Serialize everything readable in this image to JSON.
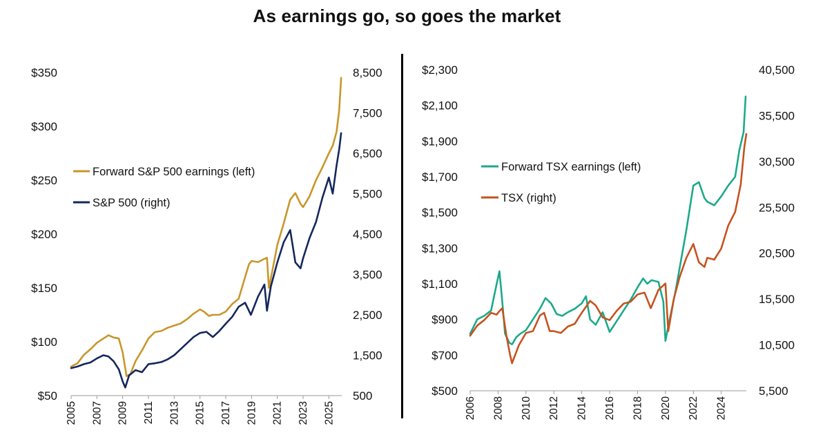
{
  "title": "As earnings go, so goes the market",
  "colors": {
    "sp_earnings": "#C8962A",
    "sp_index": "#14275C",
    "tsx_earnings": "#1BA98A",
    "tsx_index": "#C5521F",
    "divider": "#000000"
  },
  "chart_data": [
    {
      "type": "line",
      "x_ticks": [
        "2005",
        "2007",
        "2009",
        "2011",
        "2013",
        "2015",
        "2017",
        "2019",
        "2021",
        "2023",
        "2025"
      ],
      "xlim": [
        2005,
        2026
      ],
      "y_left_ticks": [
        "$350",
        "$300",
        "$250",
        "$200",
        "$150",
        "$100",
        "$50"
      ],
      "y_left_lim": [
        50,
        350
      ],
      "y_right_ticks": [
        "8,500",
        "7,500",
        "6,500",
        "5,500",
        "4,500",
        "3,500",
        "2,500",
        "1,500",
        "500"
      ],
      "y_right_lim": [
        500,
        8500
      ],
      "legend": {
        "placement": "middle-left"
      },
      "series": [
        {
          "name": "Forward S&P 500 earnings (left)",
          "axis": "left",
          "x": [
            2005.0,
            2005.5,
            2006.0,
            2006.5,
            2007.0,
            2007.5,
            2007.9,
            2008.3,
            2008.7,
            2009.0,
            2009.3,
            2009.6,
            2010.0,
            2010.5,
            2011.0,
            2011.5,
            2012.0,
            2012.5,
            2013.0,
            2013.5,
            2014.0,
            2014.5,
            2015.0,
            2015.3,
            2015.7,
            2016.0,
            2016.5,
            2017.0,
            2017.5,
            2018.0,
            2018.5,
            2018.8,
            2019.0,
            2019.5,
            2020.0,
            2020.2,
            2020.35,
            2020.6,
            2021.0,
            2021.5,
            2022.0,
            2022.4,
            2022.8,
            2023.0,
            2023.5,
            2024.0,
            2024.5,
            2025.0,
            2025.3,
            2025.6,
            2025.8,
            2025.95
          ],
          "values": [
            77,
            80,
            88,
            93,
            99,
            103,
            106,
            104,
            103,
            90,
            68,
            70,
            82,
            92,
            103,
            109,
            110,
            113,
            115,
            117,
            121,
            126,
            130,
            128,
            124,
            125,
            125,
            128,
            135,
            140,
            160,
            172,
            175,
            174,
            177,
            178,
            150,
            165,
            190,
            210,
            232,
            238,
            228,
            225,
            235,
            250,
            262,
            275,
            282,
            295,
            315,
            345
          ]
        },
        {
          "name": "S&P 500 (right)",
          "axis": "right",
          "x": [
            2005.0,
            2005.5,
            2006.0,
            2006.5,
            2007.0,
            2007.5,
            2007.9,
            2008.3,
            2008.7,
            2009.0,
            2009.2,
            2009.5,
            2010.0,
            2010.5,
            2011.0,
            2011.5,
            2012.0,
            2012.5,
            2013.0,
            2013.5,
            2014.0,
            2014.5,
            2015.0,
            2015.5,
            2016.0,
            2016.5,
            2017.0,
            2017.5,
            2018.0,
            2018.5,
            2018.95,
            2019.5,
            2020.0,
            2020.2,
            2020.5,
            2021.0,
            2021.5,
            2022.0,
            2022.4,
            2022.8,
            2023.0,
            2023.5,
            2024.0,
            2024.5,
            2025.0,
            2025.3,
            2025.6,
            2025.8,
            2025.95
          ],
          "values": [
            1180,
            1220,
            1280,
            1320,
            1420,
            1500,
            1470,
            1350,
            1150,
            850,
            700,
            1000,
            1130,
            1080,
            1280,
            1300,
            1330,
            1400,
            1500,
            1650,
            1800,
            1950,
            2050,
            2080,
            1950,
            2100,
            2280,
            2450,
            2700,
            2800,
            2500,
            2950,
            3250,
            2600,
            3200,
            3800,
            4300,
            4600,
            3800,
            3650,
            3900,
            4400,
            4800,
            5400,
            5900,
            5500,
            6200,
            6600,
            7000
          ]
        }
      ]
    },
    {
      "type": "line",
      "x_ticks": [
        "2006",
        "2008",
        "2010",
        "2012",
        "2014",
        "2016",
        "2018",
        "2020",
        "2022",
        "2024"
      ],
      "xlim": [
        2006,
        2025.8
      ],
      "y_left_ticks": [
        "$2,300",
        "$2,100",
        "$1,900",
        "$1,700",
        "$1,500",
        "$1,300",
        "$1,100",
        "$900",
        "$700",
        "$500"
      ],
      "y_left_lim": [
        500,
        2300
      ],
      "y_right_ticks": [
        "40,500",
        "35,500",
        "30,500",
        "25,500",
        "20,500",
        "15,500",
        "10,500",
        "5,500"
      ],
      "y_right_lim": [
        5500,
        40500
      ],
      "legend": {
        "placement": "middle-left"
      },
      "series": [
        {
          "name": "Forward TSX earnings (left)",
          "axis": "left",
          "x": [
            2006.0,
            2006.5,
            2007.0,
            2007.5,
            2007.9,
            2008.1,
            2008.3,
            2008.5,
            2008.8,
            2009.0,
            2009.3,
            2009.6,
            2010.0,
            2010.5,
            2011.0,
            2011.4,
            2011.8,
            2012.2,
            2012.6,
            2013.0,
            2013.5,
            2014.0,
            2014.3,
            2014.6,
            2015.0,
            2015.5,
            2016.0,
            2016.5,
            2017.0,
            2017.5,
            2018.0,
            2018.4,
            2018.7,
            2019.0,
            2019.5,
            2019.85,
            2020.0,
            2020.3,
            2020.7,
            2021.0,
            2021.5,
            2022.0,
            2022.4,
            2022.8,
            2023.0,
            2023.5,
            2024.0,
            2024.5,
            2025.0,
            2025.3,
            2025.6,
            2025.75
          ],
          "values": [
            820,
            900,
            920,
            950,
            1100,
            1170,
            1000,
            820,
            770,
            760,
            800,
            820,
            840,
            900,
            960,
            1020,
            990,
            930,
            920,
            940,
            960,
            990,
            1030,
            900,
            870,
            940,
            830,
            890,
            950,
            1010,
            1080,
            1130,
            1100,
            1120,
            1110,
            1000,
            780,
            900,
            1050,
            1180,
            1400,
            1650,
            1670,
            1580,
            1560,
            1540,
            1590,
            1650,
            1700,
            1850,
            1950,
            2150
          ]
        },
        {
          "name": "TSX (right)",
          "axis": "right",
          "x": [
            2006.0,
            2006.5,
            2007.0,
            2007.5,
            2007.9,
            2008.1,
            2008.3,
            2008.6,
            2008.85,
            2009.0,
            2009.5,
            2010.0,
            2010.5,
            2011.0,
            2011.3,
            2011.7,
            2012.0,
            2012.5,
            2013.0,
            2013.5,
            2014.0,
            2014.6,
            2015.0,
            2015.5,
            2016.0,
            2016.5,
            2017.0,
            2017.5,
            2018.0,
            2018.5,
            2018.95,
            2019.5,
            2020.0,
            2020.2,
            2020.6,
            2021.0,
            2021.5,
            2022.0,
            2022.4,
            2022.8,
            2023.0,
            2023.5,
            2024.0,
            2024.5,
            2025.0,
            2025.4,
            2025.65,
            2025.8
          ],
          "values": [
            11500,
            12600,
            13200,
            14000,
            13800,
            14200,
            14500,
            11500,
            9500,
            8500,
            10500,
            11800,
            12000,
            13700,
            14000,
            12000,
            12000,
            11800,
            12500,
            12800,
            14000,
            15300,
            14800,
            13500,
            13200,
            14200,
            15000,
            15200,
            16000,
            16200,
            14500,
            16500,
            17200,
            12000,
            15500,
            17800,
            20000,
            21500,
            19500,
            19000,
            20000,
            19800,
            21000,
            23500,
            25000,
            28000,
            32000,
            33500
          ]
        }
      ]
    }
  ]
}
